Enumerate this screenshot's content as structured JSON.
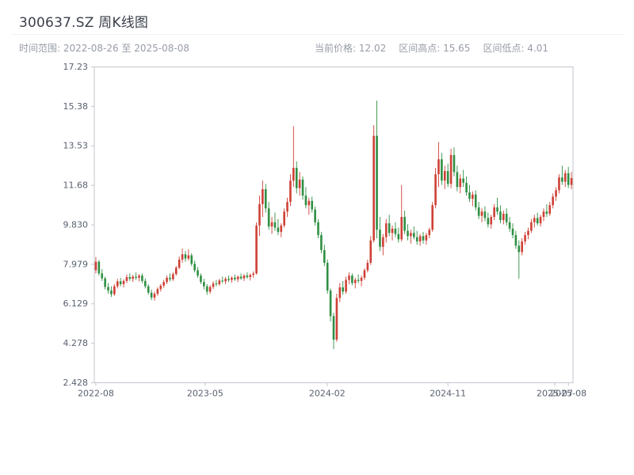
{
  "header": {
    "title": "300637.SZ 周K线图",
    "range_label": "时间范围: 2022-08-26 至 2025-08-08",
    "stats": [
      "当前价格: 12.02",
      "区间高点: 15.65",
      "区间低点: 4.01"
    ]
  },
  "chart_data": {
    "type": "candlestick",
    "title": "300637.SZ 周K线图",
    "symbol": "300637.SZ",
    "period": "weekly",
    "date_start": "2022-08-26",
    "date_end": "2025-08-08",
    "current_price": 12.02,
    "range_high": 15.65,
    "range_low": 4.01,
    "up_color": "#cf4036",
    "down_color": "#2f8f43",
    "frame_color": "#c2c6cc",
    "tick_color": "#5a6170",
    "grid": false,
    "legend": false,
    "y_axis": {
      "min": 2.428,
      "max": 17.23,
      "ticks": [
        "17.23",
        "15.38",
        "13.53",
        "11.68",
        "9.830",
        "7.979",
        "6.129",
        "4.278",
        "2.428"
      ]
    },
    "x_axis": {
      "ticks": [
        {
          "label": "2022-08",
          "week": 0
        },
        {
          "label": "2023-05",
          "week": 35.4
        },
        {
          "label": "2024-02",
          "week": 74.9
        },
        {
          "label": "2024-11",
          "week": 114.0
        },
        {
          "label": "2025-07",
          "week": 148.6
        },
        {
          "label": "2025-08",
          "week": 153.0
        }
      ]
    },
    "columns": [
      "date",
      "open",
      "high",
      "low",
      "close"
    ],
    "candles": [
      [
        "2022-08-26",
        7.7,
        8.32,
        7.55,
        8.1
      ],
      [
        "2022-09-02",
        8.1,
        8.18,
        7.45,
        7.55
      ],
      [
        "2022-09-09",
        7.55,
        7.75,
        7.2,
        7.32
      ],
      [
        "2022-09-16",
        7.32,
        7.4,
        6.8,
        6.92
      ],
      [
        "2022-09-23",
        6.92,
        7.1,
        6.6,
        6.75
      ],
      [
        "2022-09-30",
        6.75,
        6.95,
        6.45,
        6.58
      ],
      [
        "2022-10-07",
        6.58,
        7.05,
        6.5,
        6.95
      ],
      [
        "2022-10-14",
        6.95,
        7.3,
        6.85,
        7.18
      ],
      [
        "2022-10-21",
        7.18,
        7.35,
        6.95,
        7.05
      ],
      [
        "2022-10-28",
        7.05,
        7.28,
        6.9,
        7.2
      ],
      [
        "2022-11-04",
        7.2,
        7.5,
        7.1,
        7.38
      ],
      [
        "2022-11-11",
        7.38,
        7.55,
        7.2,
        7.3
      ],
      [
        "2022-11-18",
        7.3,
        7.48,
        7.15,
        7.4
      ],
      [
        "2022-11-25",
        7.4,
        7.6,
        7.25,
        7.35
      ],
      [
        "2022-12-02",
        7.35,
        7.52,
        7.18,
        7.45
      ],
      [
        "2022-12-09",
        7.45,
        7.55,
        7.1,
        7.2
      ],
      [
        "2022-12-16",
        7.2,
        7.32,
        6.85,
        6.95
      ],
      [
        "2022-12-23",
        6.95,
        7.05,
        6.55,
        6.65
      ],
      [
        "2022-12-30",
        6.65,
        6.8,
        6.3,
        6.42
      ],
      [
        "2023-01-06",
        6.42,
        6.7,
        6.28,
        6.6
      ],
      [
        "2023-01-13",
        6.6,
        6.9,
        6.5,
        6.82
      ],
      [
        "2023-01-20",
        6.82,
        7.05,
        6.7,
        6.98
      ],
      [
        "2023-01-27",
        6.98,
        7.25,
        6.88,
        7.15
      ],
      [
        "2023-02-03",
        7.15,
        7.45,
        7.05,
        7.35
      ],
      [
        "2023-02-10",
        7.35,
        7.55,
        7.18,
        7.28
      ],
      [
        "2023-02-17",
        7.28,
        7.6,
        7.2,
        7.52
      ],
      [
        "2023-02-24",
        7.52,
        7.9,
        7.45,
        7.82
      ],
      [
        "2023-03-03",
        7.82,
        8.35,
        7.75,
        8.2
      ],
      [
        "2023-03-10",
        8.2,
        8.72,
        8.05,
        8.45
      ],
      [
        "2023-03-17",
        8.45,
        8.6,
        8.1,
        8.25
      ],
      [
        "2023-03-24",
        8.25,
        8.68,
        8.15,
        8.4
      ],
      [
        "2023-03-31",
        8.4,
        8.5,
        7.9,
        8.0
      ],
      [
        "2023-04-07",
        8.0,
        8.15,
        7.6,
        7.7
      ],
      [
        "2023-04-14",
        7.7,
        7.85,
        7.35,
        7.45
      ],
      [
        "2023-04-21",
        7.45,
        7.55,
        7.05,
        7.15
      ],
      [
        "2023-04-28",
        7.15,
        7.3,
        6.8,
        6.95
      ],
      [
        "2023-05-05",
        6.95,
        7.05,
        6.55,
        6.7
      ],
      [
        "2023-05-12",
        6.7,
        7.0,
        6.6,
        6.92
      ],
      [
        "2023-05-19",
        6.92,
        7.18,
        6.82,
        7.08
      ],
      [
        "2023-05-26",
        7.08,
        7.25,
        6.95,
        7.05
      ],
      [
        "2023-06-02",
        7.05,
        7.3,
        6.98,
        7.22
      ],
      [
        "2023-06-09",
        7.22,
        7.4,
        7.1,
        7.18
      ],
      [
        "2023-06-16",
        7.18,
        7.38,
        7.05,
        7.3
      ],
      [
        "2023-06-23",
        7.3,
        7.45,
        7.15,
        7.25
      ],
      [
        "2023-06-30",
        7.25,
        7.42,
        7.12,
        7.35
      ],
      [
        "2023-07-07",
        7.35,
        7.5,
        7.2,
        7.28
      ],
      [
        "2023-07-14",
        7.28,
        7.45,
        7.15,
        7.4
      ],
      [
        "2023-07-21",
        7.4,
        7.55,
        7.25,
        7.32
      ],
      [
        "2023-07-28",
        7.32,
        7.52,
        7.2,
        7.45
      ],
      [
        "2023-08-04",
        7.45,
        7.6,
        7.3,
        7.38
      ],
      [
        "2023-08-11",
        7.38,
        7.55,
        7.22,
        7.48
      ],
      [
        "2023-08-18",
        7.48,
        7.65,
        7.35,
        7.55
      ],
      [
        "2023-08-25",
        7.55,
        9.95,
        7.5,
        9.8
      ],
      [
        "2023-09-01",
        9.8,
        11.2,
        9.3,
        10.8
      ],
      [
        "2023-09-08",
        10.8,
        11.9,
        10.2,
        11.5
      ],
      [
        "2023-09-15",
        11.5,
        11.75,
        10.4,
        10.6
      ],
      [
        "2023-09-22",
        10.6,
        10.9,
        9.6,
        9.75
      ],
      [
        "2023-09-29",
        9.75,
        10.2,
        9.4,
        9.95
      ],
      [
        "2023-10-06",
        9.95,
        10.4,
        9.55,
        9.7
      ],
      [
        "2023-10-13",
        9.7,
        10.1,
        9.35,
        9.5
      ],
      [
        "2023-10-20",
        9.5,
        9.9,
        9.25,
        9.8
      ],
      [
        "2023-10-27",
        9.8,
        10.6,
        9.7,
        10.45
      ],
      [
        "2023-11-03",
        10.45,
        11.1,
        10.2,
        10.9
      ],
      [
        "2023-11-10",
        10.9,
        12.2,
        10.7,
        11.9
      ],
      [
        "2023-11-17",
        11.9,
        14.45,
        11.6,
        12.5
      ],
      [
        "2023-11-24",
        12.5,
        12.8,
        11.3,
        11.55
      ],
      [
        "2023-12-01",
        11.55,
        12.3,
        11.2,
        11.95
      ],
      [
        "2023-12-08",
        11.95,
        12.1,
        11.0,
        11.2
      ],
      [
        "2023-12-15",
        11.2,
        11.6,
        10.6,
        10.75
      ],
      [
        "2023-12-22",
        10.75,
        11.1,
        10.3,
        10.95
      ],
      [
        "2023-12-29",
        10.95,
        11.15,
        10.4,
        10.55
      ],
      [
        "2024-01-05",
        10.55,
        10.7,
        9.8,
        9.95
      ],
      [
        "2024-01-12",
        9.95,
        10.1,
        9.2,
        9.35
      ],
      [
        "2024-01-19",
        9.35,
        9.5,
        8.5,
        8.65
      ],
      [
        "2024-01-26",
        8.65,
        8.9,
        7.9,
        8.05
      ],
      [
        "2024-02-02",
        8.05,
        8.2,
        6.6,
        6.75
      ],
      [
        "2024-02-09",
        6.75,
        6.85,
        5.3,
        5.55
      ],
      [
        "2024-02-16",
        5.55,
        5.7,
        4.01,
        4.45
      ],
      [
        "2024-02-23",
        4.45,
        6.6,
        4.35,
        6.4
      ],
      [
        "2024-03-01",
        6.4,
        7.1,
        6.2,
        6.9
      ],
      [
        "2024-03-08",
        6.9,
        7.2,
        6.55,
        6.7
      ],
      [
        "2024-03-15",
        6.7,
        7.4,
        6.6,
        7.25
      ],
      [
        "2024-03-22",
        7.25,
        7.6,
        7.05,
        7.45
      ],
      [
        "2024-03-29",
        7.45,
        7.55,
        7.0,
        7.1
      ],
      [
        "2024-04-05",
        7.1,
        7.35,
        6.85,
        7.25
      ],
      [
        "2024-04-12",
        7.25,
        7.5,
        7.1,
        7.2
      ],
      [
        "2024-04-19",
        7.2,
        7.45,
        6.95,
        7.35
      ],
      [
        "2024-04-26",
        7.35,
        7.8,
        7.25,
        7.7
      ],
      [
        "2024-05-03",
        7.7,
        8.2,
        7.6,
        8.05
      ],
      [
        "2024-05-10",
        8.05,
        9.3,
        7.95,
        9.1
      ],
      [
        "2024-05-17",
        9.1,
        14.5,
        9.0,
        14.0
      ],
      [
        "2024-05-24",
        14.0,
        15.65,
        9.2,
        9.6
      ],
      [
        "2024-05-31",
        9.6,
        10.2,
        8.6,
        8.8
      ],
      [
        "2024-06-07",
        8.8,
        9.4,
        8.4,
        9.25
      ],
      [
        "2024-06-14",
        9.25,
        10.1,
        9.0,
        9.9
      ],
      [
        "2024-06-21",
        9.9,
        10.3,
        9.3,
        9.45
      ],
      [
        "2024-06-28",
        9.45,
        9.8,
        9.1,
        9.65
      ],
      [
        "2024-07-05",
        9.65,
        9.95,
        9.25,
        9.4
      ],
      [
        "2024-07-12",
        9.4,
        9.7,
        9.0,
        9.15
      ],
      [
        "2024-07-19",
        9.15,
        11.7,
        9.05,
        10.2
      ],
      [
        "2024-07-26",
        10.2,
        10.5,
        9.4,
        9.55
      ],
      [
        "2024-08-02",
        9.55,
        9.85,
        9.1,
        9.3
      ],
      [
        "2024-08-09",
        9.3,
        9.6,
        8.95,
        9.45
      ],
      [
        "2024-08-16",
        9.45,
        9.75,
        9.15,
        9.25
      ],
      [
        "2024-08-23",
        9.25,
        9.55,
        8.9,
        9.05
      ],
      [
        "2024-08-30",
        9.05,
        9.4,
        8.85,
        9.3
      ],
      [
        "2024-09-06",
        9.3,
        9.5,
        8.95,
        9.1
      ],
      [
        "2024-09-13",
        9.1,
        9.45,
        8.9,
        9.35
      ],
      [
        "2024-09-20",
        9.35,
        9.7,
        9.2,
        9.6
      ],
      [
        "2024-09-27",
        9.6,
        10.9,
        9.5,
        10.75
      ],
      [
        "2024-10-04",
        10.75,
        12.5,
        10.6,
        12.2
      ],
      [
        "2024-10-11",
        12.2,
        13.7,
        11.6,
        12.9
      ],
      [
        "2024-10-18",
        12.9,
        13.2,
        11.7,
        11.9
      ],
      [
        "2024-10-25",
        11.9,
        12.6,
        11.5,
        12.35
      ],
      [
        "2024-11-01",
        12.35,
        12.7,
        11.6,
        11.75
      ],
      [
        "2024-11-08",
        11.75,
        13.4,
        11.55,
        13.1
      ],
      [
        "2024-11-15",
        13.1,
        13.45,
        12.1,
        12.3
      ],
      [
        "2024-11-22",
        12.3,
        12.6,
        11.4,
        11.6
      ],
      [
        "2024-11-29",
        11.6,
        12.2,
        11.3,
        12.0
      ],
      [
        "2024-12-06",
        12.0,
        12.4,
        11.6,
        11.8
      ],
      [
        "2024-12-13",
        11.8,
        12.1,
        11.2,
        11.35
      ],
      [
        "2024-12-20",
        11.35,
        11.7,
        10.9,
        11.05
      ],
      [
        "2024-12-27",
        11.05,
        11.4,
        10.7,
        11.25
      ],
      [
        "2025-01-03",
        11.25,
        11.45,
        10.5,
        10.65
      ],
      [
        "2025-01-10",
        10.65,
        10.9,
        10.1,
        10.25
      ],
      [
        "2025-01-17",
        10.25,
        10.6,
        9.95,
        10.45
      ],
      [
        "2025-01-24",
        10.45,
        10.7,
        10.0,
        10.15
      ],
      [
        "2025-01-31",
        10.15,
        10.4,
        9.7,
        9.85
      ],
      [
        "2025-02-07",
        9.85,
        10.3,
        9.65,
        10.2
      ],
      [
        "2025-02-14",
        10.2,
        10.8,
        10.05,
        10.65
      ],
      [
        "2025-02-21",
        10.65,
        11.1,
        10.3,
        10.45
      ],
      [
        "2025-02-28",
        10.45,
        10.75,
        9.9,
        10.05
      ],
      [
        "2025-03-07",
        10.05,
        10.5,
        9.85,
        10.35
      ],
      [
        "2025-03-14",
        10.35,
        10.6,
        9.8,
        9.95
      ],
      [
        "2025-03-21",
        9.95,
        10.2,
        9.5,
        9.65
      ],
      [
        "2025-03-28",
        9.65,
        9.9,
        9.2,
        9.35
      ],
      [
        "2025-04-04",
        9.35,
        9.55,
        8.7,
        8.85
      ],
      [
        "2025-04-11",
        8.85,
        9.1,
        7.3,
        8.55
      ],
      [
        "2025-04-18",
        8.55,
        9.2,
        8.4,
        9.05
      ],
      [
        "2025-04-25",
        9.05,
        9.5,
        8.9,
        9.35
      ],
      [
        "2025-05-02",
        9.35,
        9.7,
        9.15,
        9.55
      ],
      [
        "2025-05-09",
        9.55,
        10.1,
        9.45,
        9.95
      ],
      [
        "2025-05-16",
        9.95,
        10.3,
        9.7,
        10.15
      ],
      [
        "2025-05-23",
        10.15,
        10.4,
        9.8,
        9.9
      ],
      [
        "2025-05-30",
        9.9,
        10.3,
        9.75,
        10.2
      ],
      [
        "2025-06-06",
        10.2,
        10.6,
        10.0,
        10.45
      ],
      [
        "2025-06-13",
        10.45,
        10.8,
        10.2,
        10.35
      ],
      [
        "2025-06-20",
        10.35,
        10.9,
        10.25,
        10.75
      ],
      [
        "2025-06-27",
        10.75,
        11.3,
        10.6,
        11.15
      ],
      [
        "2025-07-04",
        11.15,
        11.6,
        10.95,
        11.45
      ],
      [
        "2025-07-11",
        11.45,
        12.2,
        11.3,
        12.05
      ],
      [
        "2025-07-18",
        12.05,
        12.6,
        11.7,
        11.85
      ],
      [
        "2025-07-25",
        11.85,
        12.4,
        11.6,
        12.25
      ],
      [
        "2025-08-01",
        12.25,
        12.55,
        11.55,
        11.7
      ],
      [
        "2025-08-08",
        11.7,
        12.3,
        11.5,
        12.02
      ]
    ]
  }
}
